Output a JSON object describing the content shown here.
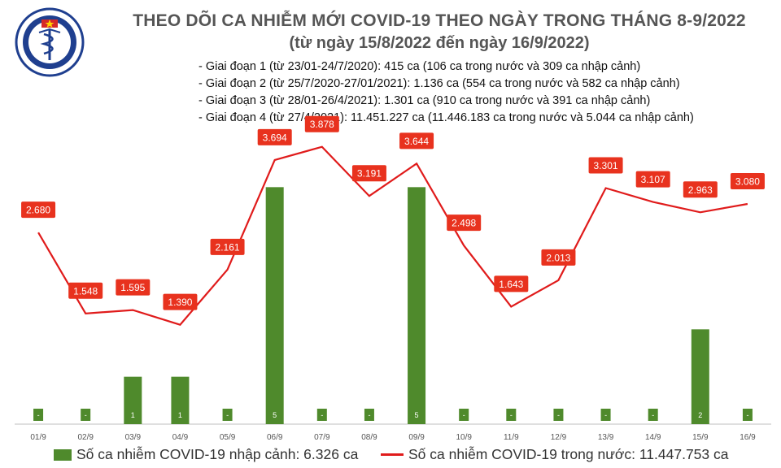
{
  "header": {
    "logo_text_top": "BỘ Y TẾ",
    "logo_text_bottom": "MINISTRY OF HEALTH",
    "title_line1": "THEO DÕI CA NHIỄM MỚI COVID-19 THEO NGÀY TRONG THÁNG 8-9/2022",
    "title_line2": "(từ ngày 15/8/2022 đến ngày 16/9/2022)"
  },
  "phases": [
    "- Giai đoạn 1 (từ 23/01-24/7/2020): 415 ca (106 ca trong nước và 309 ca nhập cảnh)",
    "- Giai đoạn 2 (từ 25/7/2020-27/01/2021): 1.136 ca (554 ca trong nước và 582 ca nhập cảnh)",
    "- Giai đoạn 3 (từ 28/01-26/4/2021): 1.301 ca (910 ca trong nước và 391 ca nhập cảnh)",
    "- Giai đoạn 4 (từ 27/4/2021): 11.451.227 ca (11.446.183 ca trong nước và 5.044 ca nhập cảnh)"
  ],
  "legend": {
    "bar_label": "Số ca nhiễm COVID-19 nhập cảnh: 6.326 ca",
    "line_label": "Số ca nhiễm COVID-19 trong nước: 11.447.753 ca"
  },
  "colors": {
    "bar": "#4f8a2c",
    "line": "#e01b1b",
    "label_bg": "#e8321e"
  },
  "chart_data": {
    "type": "bar+line",
    "categories": [
      "01/9",
      "02/9",
      "03/9",
      "04/9",
      "05/9",
      "06/9",
      "07/9",
      "08/9",
      "09/9",
      "10/9",
      "11/9",
      "12/9",
      "13/9",
      "14/9",
      "15/9",
      "16/9"
    ],
    "series": [
      {
        "name": "Số ca nhiễm COVID-19 nhập cảnh",
        "type": "bar",
        "values": [
          0,
          0,
          1,
          1,
          0,
          5,
          0,
          0,
          5,
          0,
          0,
          0,
          0,
          0,
          2,
          0
        ],
        "labels": [
          "-",
          "-",
          "1",
          "1",
          "-",
          "5",
          "-",
          "-",
          "5",
          "-",
          "-",
          "-",
          "-",
          "-",
          "2",
          "-"
        ]
      },
      {
        "name": "Số ca nhiễm COVID-19 trong nước",
        "type": "line",
        "values": [
          2680,
          1548,
          1595,
          1390,
          2161,
          3694,
          3878,
          3191,
          3644,
          2498,
          1643,
          2013,
          3301,
          3107,
          2963,
          3080
        ],
        "labels": [
          "2.680",
          "1.548",
          "1.595",
          "1.390",
          "2.161",
          "3.694",
          "3.878",
          "3.191",
          "3.644",
          "2.498",
          "1.643",
          "2.013",
          "3.301",
          "3.107",
          "2.963",
          "3.080"
        ]
      }
    ],
    "y_left_range": [
      0,
      4000
    ],
    "y_right_range": [
      0,
      6
    ],
    "grid": false
  }
}
